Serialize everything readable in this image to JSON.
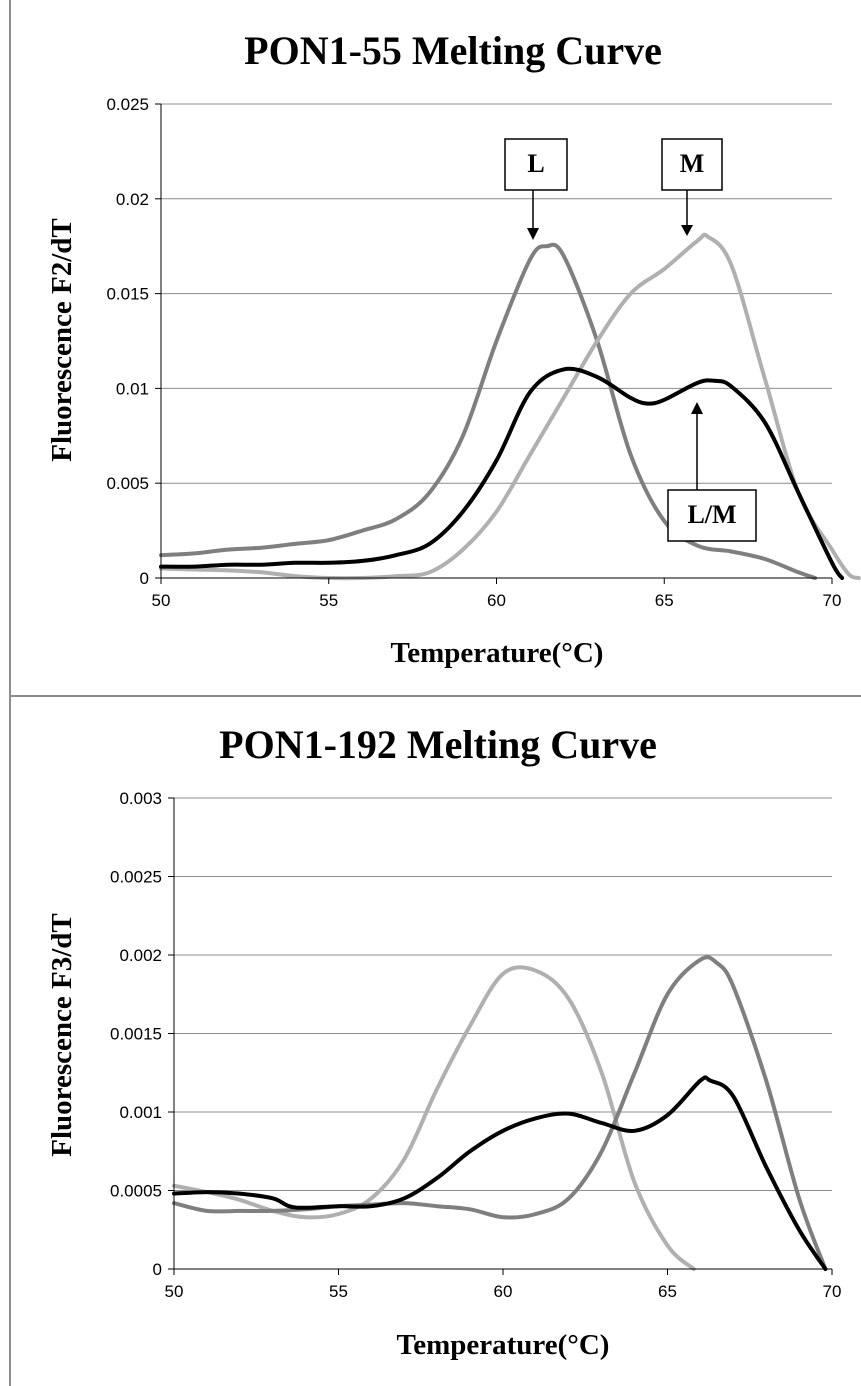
{
  "colors": {
    "dark": "#000000",
    "mid": "#7f7f7f",
    "light": "#b0b0b0",
    "grid": "#8c8c8c",
    "frame": "#8c8c8c"
  },
  "chart_data": [
    {
      "type": "line",
      "title": "PON1-55 Melting Curve",
      "xlabel": "Temperature(°C)",
      "ylabel": "Fluorescence F2/dT",
      "xlim": [
        50,
        70
      ],
      "ylim": [
        0,
        0.025
      ],
      "xticks": [
        "50",
        "55",
        "60",
        "65",
        "70"
      ],
      "yticks": [
        "0",
        "0.005",
        "0.01",
        "0.015",
        "0.02",
        "0.025"
      ],
      "grid": true,
      "annotations": [
        "L",
        "M",
        "L/M"
      ],
      "series": [
        {
          "color": "mid",
          "points": [
            [
              50,
              0.0012
            ],
            [
              51,
              0.0013
            ],
            [
              52,
              0.0015
            ],
            [
              53,
              0.0016
            ],
            [
              54,
              0.0018
            ],
            [
              55,
              0.002
            ],
            [
              56,
              0.0025
            ],
            [
              57,
              0.0031
            ],
            [
              58,
              0.0045
            ],
            [
              59,
              0.0075
            ],
            [
              60,
              0.0125
            ],
            [
              61,
              0.0168
            ],
            [
              61.5,
              0.0175
            ],
            [
              62,
              0.017
            ],
            [
              63,
              0.0125
            ],
            [
              64,
              0.0065
            ],
            [
              65,
              0.003
            ],
            [
              66,
              0.0017
            ],
            [
              67,
              0.0014
            ],
            [
              68,
              0.001
            ],
            [
              69,
              0.0003
            ],
            [
              69.5,
              0
            ]
          ]
        },
        {
          "color": "light",
          "points": [
            [
              50,
              0.0005
            ],
            [
              51,
              0.00045
            ],
            [
              52,
              0.0004
            ],
            [
              53,
              0.0003
            ],
            [
              54,
              0.0001
            ],
            [
              55,
              0.0
            ],
            [
              56,
              0.0
            ],
            [
              57,
              0.0001
            ],
            [
              58,
              0.0003
            ],
            [
              59,
              0.0015
            ],
            [
              60,
              0.0035
            ],
            [
              61,
              0.0065
            ],
            [
              62,
              0.0095
            ],
            [
              63,
              0.0125
            ],
            [
              64,
              0.015
            ],
            [
              65,
              0.0163
            ],
            [
              66,
              0.0178
            ],
            [
              66.3,
              0.018
            ],
            [
              67,
              0.0165
            ],
            [
              68,
              0.0105
            ],
            [
              69,
              0.0045
            ],
            [
              70,
              0.0015
            ],
            [
              70.5,
              0.0002
            ],
            [
              70.8,
              0
            ]
          ]
        },
        {
          "color": "dark",
          "points": [
            [
              50,
              0.0006
            ],
            [
              51,
              0.0006
            ],
            [
              52,
              0.0007
            ],
            [
              53,
              0.0007
            ],
            [
              54,
              0.0008
            ],
            [
              55,
              0.0008
            ],
            [
              56,
              0.0009
            ],
            [
              57,
              0.0012
            ],
            [
              58,
              0.0018
            ],
            [
              59,
              0.0035
            ],
            [
              60,
              0.0062
            ],
            [
              61,
              0.0098
            ],
            [
              62,
              0.011
            ],
            [
              63,
              0.0106
            ],
            [
              64,
              0.0095
            ],
            [
              64.5,
              0.0092
            ],
            [
              65,
              0.0094
            ],
            [
              66,
              0.0103
            ],
            [
              66.5,
              0.0104
            ],
            [
              67,
              0.0101
            ],
            [
              68,
              0.0082
            ],
            [
              69,
              0.0045
            ],
            [
              70,
              0.0008
            ],
            [
              70.3,
              0
            ]
          ]
        }
      ]
    },
    {
      "type": "line",
      "title": "PON1-192 Melting Curve",
      "xlabel": "Temperature(°C)",
      "ylabel": "Fluorescence F3/dT",
      "xlim": [
        50,
        70
      ],
      "ylim": [
        0,
        0.003
      ],
      "xticks": [
        "50",
        "55",
        "60",
        "65",
        "70"
      ],
      "yticks": [
        "0",
        "0.0005",
        "0.001",
        "0.0015",
        "0.002",
        "0.0025",
        "0.003"
      ],
      "grid": true,
      "series": [
        {
          "color": "light",
          "points": [
            [
              50,
              0.00053
            ],
            [
              51,
              0.00049
            ],
            [
              52,
              0.00044
            ],
            [
              53,
              0.00037
            ],
            [
              54,
              0.00033
            ],
            [
              55,
              0.00035
            ],
            [
              56,
              0.00045
            ],
            [
              57,
              0.0007
            ],
            [
              58,
              0.00115
            ],
            [
              59,
              0.00155
            ],
            [
              60,
              0.00188
            ],
            [
              61,
              0.0019
            ],
            [
              62,
              0.00172
            ],
            [
              63,
              0.00125
            ],
            [
              64,
              0.00055
            ],
            [
              65,
              0.00015
            ],
            [
              65.8,
              0
            ]
          ]
        },
        {
          "color": "mid",
          "points": [
            [
              50,
              0.00042
            ],
            [
              51,
              0.00037
            ],
            [
              52,
              0.00037
            ],
            [
              53,
              0.00037
            ],
            [
              54,
              0.00038
            ],
            [
              55,
              0.0004
            ],
            [
              56,
              0.00041
            ],
            [
              57,
              0.00042
            ],
            [
              58,
              0.0004
            ],
            [
              59,
              0.00038
            ],
            [
              60,
              0.00033
            ],
            [
              61,
              0.00035
            ],
            [
              62,
              0.00045
            ],
            [
              63,
              0.00075
            ],
            [
              64,
              0.00125
            ],
            [
              65,
              0.00175
            ],
            [
              66,
              0.00197
            ],
            [
              66.5,
              0.00195
            ],
            [
              67,
              0.0018
            ],
            [
              68,
              0.0012
            ],
            [
              69,
              0.00045
            ],
            [
              69.8,
              0
            ]
          ]
        },
        {
          "color": "dark",
          "points": [
            [
              50,
              0.00048
            ],
            [
              51,
              0.00049
            ],
            [
              52,
              0.00048
            ],
            [
              53,
              0.00045
            ],
            [
              53.5,
              0.0004
            ],
            [
              54,
              0.00039
            ],
            [
              55,
              0.0004
            ],
            [
              56,
              0.0004
            ],
            [
              57,
              0.00045
            ],
            [
              58,
              0.00058
            ],
            [
              59,
              0.00075
            ],
            [
              60,
              0.00088
            ],
            [
              61,
              0.00096
            ],
            [
              62,
              0.00099
            ],
            [
              63,
              0.00093
            ],
            [
              64,
              0.00088
            ],
            [
              65,
              0.00098
            ],
            [
              66,
              0.0012
            ],
            [
              66.3,
              0.0012
            ],
            [
              67,
              0.0011
            ],
            [
              68,
              0.00065
            ],
            [
              69,
              0.00025
            ],
            [
              69.8,
              0
            ]
          ]
        }
      ]
    }
  ]
}
